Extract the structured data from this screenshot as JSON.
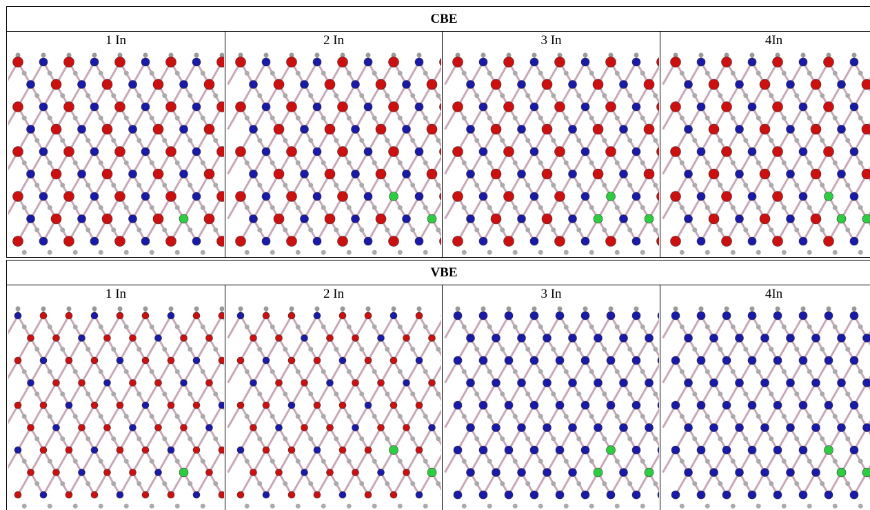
{
  "sections": [
    {
      "title": "CBE",
      "panels": [
        "1 In",
        "2 In",
        "3 In",
        "4In"
      ]
    },
    {
      "title": "VBE",
      "panels": [
        "1 In",
        "2 In",
        "3 In",
        "4In"
      ]
    }
  ]
}
